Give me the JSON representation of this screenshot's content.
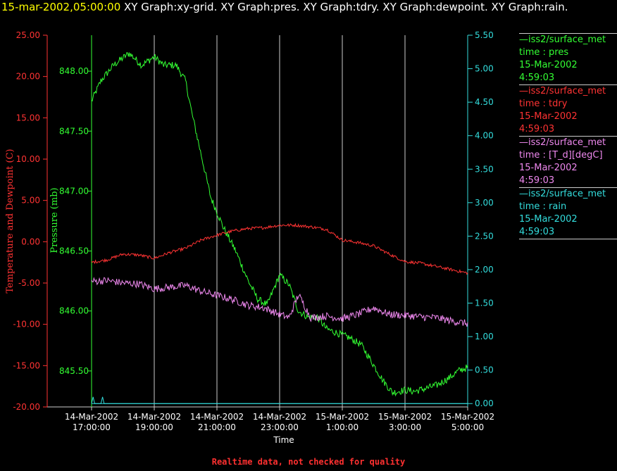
{
  "header": {
    "datetime": "15-mar-2002,05:00:00",
    "graphs": "XY Graph:xy-grid.  XY Graph:pres.  XY Graph:tdry.  XY Graph:dewpoint.  XY Graph:rain."
  },
  "footer": {
    "note": "Realtime data, not checked for quality"
  },
  "legend": [
    {
      "source": "—iss2/surface_met",
      "variable": "time : pres",
      "date": "15-Mar-2002",
      "time": "4:59:03",
      "color": "#33ff33"
    },
    {
      "source": "—iss2/surface_met",
      "variable": "time : tdry",
      "date": "15-Mar-2002",
      "time": "4:59:03",
      "color": "#ff3333"
    },
    {
      "source": "—iss2/surface_met",
      "variable": "time : [T_d][degC]",
      "date": "15-Mar-2002",
      "time": "4:59:03",
      "color": "#ee88ee"
    },
    {
      "source": "—iss2/surface_met",
      "variable": "time : rain",
      "date": "15-Mar-2002",
      "time": "4:59:03",
      "color": "#33dddd"
    }
  ],
  "chart_data": {
    "type": "line",
    "xlabel": "Time",
    "x_ticks": [
      [
        "14-Mar-2002",
        "17:00:00"
      ],
      [
        "14-Mar-2002",
        "19:00:00"
      ],
      [
        "14-Mar-2002",
        "21:00:00"
      ],
      [
        "14-Mar-2002",
        "23:00:00"
      ],
      [
        "15-Mar-2002",
        "1:00:00"
      ],
      [
        "15-Mar-2002",
        "3:00:00"
      ],
      [
        "15-Mar-2002",
        "5:00:00"
      ]
    ],
    "x_range_hours": [
      0,
      12
    ],
    "grid": "vertical",
    "axes": {
      "left_temp": {
        "label": "Temperature and Dewpoint (C)",
        "range": [
          -20,
          25
        ],
        "ticks": [
          "-20.00",
          "-15.00",
          "-10.00",
          "-5.00",
          "0.00",
          "5.00",
          "10.00",
          "15.00",
          "20.00",
          "25.00"
        ],
        "color": "#ff3333"
      },
      "left_pres": {
        "label": "Pressure (mb)",
        "range": [
          845.2,
          848.3
        ],
        "ticks": [
          "845.50",
          "846.00",
          "846.50",
          "847.00",
          "847.50",
          "848.00"
        ],
        "color": "#33ff33"
      },
      "right_rain": {
        "label": "",
        "range": [
          -0.05,
          5.5
        ],
        "ticks": [
          "0.00",
          "0.50",
          "1.00",
          "1.50",
          "2.00",
          "2.50",
          "3.00",
          "3.50",
          "4.00",
          "4.50",
          "5.00",
          "5.50"
        ],
        "color": "#33dddd"
      }
    },
    "series": [
      {
        "name": "pres",
        "axis": "left_pres",
        "color": "#33ff33",
        "x": [
          0,
          0.3,
          0.7,
          1.2,
          1.6,
          2.0,
          2.3,
          2.7,
          3.0,
          3.2,
          3.5,
          3.8,
          4.2,
          4.6,
          5.0,
          5.3,
          5.6,
          6.0,
          6.3,
          6.6,
          6.9,
          7.2,
          7.5,
          7.8,
          8.2,
          8.6,
          9.0,
          9.3,
          9.6,
          10.0,
          10.3,
          10.6,
          11.0,
          11.4,
          11.7,
          12.0
        ],
        "y": [
          847.75,
          847.92,
          848.05,
          848.15,
          848.05,
          848.12,
          848.05,
          848.05,
          847.92,
          847.65,
          847.3,
          846.95,
          846.7,
          846.5,
          846.25,
          846.1,
          846.05,
          846.3,
          846.22,
          846.0,
          845.95,
          845.95,
          845.85,
          845.82,
          845.78,
          845.72,
          845.55,
          845.42,
          845.32,
          845.34,
          845.33,
          845.35,
          845.38,
          845.44,
          845.5,
          845.53
        ]
      },
      {
        "name": "tdry",
        "axis": "left_temp",
        "color": "#ff3333",
        "x": [
          0,
          0.5,
          1.0,
          1.5,
          2.0,
          2.5,
          3.0,
          3.5,
          4.0,
          4.5,
          5.0,
          5.5,
          6.0,
          6.5,
          7.0,
          7.5,
          8.0,
          8.5,
          9.0,
          9.5,
          10.0,
          10.5,
          11.0,
          11.5,
          12.0
        ],
        "y": [
          -2.5,
          -2.2,
          -1.5,
          -1.6,
          -2.0,
          -1.3,
          -0.8,
          0.2,
          0.8,
          1.3,
          1.6,
          1.7,
          2.0,
          2.0,
          1.8,
          1.5,
          0.2,
          -0.1,
          -0.5,
          -1.5,
          -2.4,
          -2.6,
          -3.0,
          -3.4,
          -3.8
        ]
      },
      {
        "name": "dewpoint",
        "axis": "left_temp",
        "color": "#ee88ee",
        "x": [
          0,
          0.5,
          1.0,
          1.5,
          2.0,
          2.5,
          3.0,
          3.5,
          4.0,
          4.5,
          5.0,
          5.5,
          6.0,
          6.3,
          6.6,
          7.0,
          7.5,
          8.0,
          8.5,
          9.0,
          9.5,
          10.0,
          10.5,
          11.0,
          11.5,
          12.0
        ],
        "y": [
          -4.8,
          -4.7,
          -5.0,
          -5.1,
          -5.7,
          -5.5,
          -5.3,
          -6.0,
          -6.5,
          -7.0,
          -7.7,
          -8.0,
          -8.8,
          -9.2,
          -6.4,
          -9.2,
          -9.0,
          -9.3,
          -8.8,
          -8.0,
          -8.8,
          -8.9,
          -9.1,
          -9.2,
          -9.6,
          -9.9
        ]
      },
      {
        "name": "rain",
        "axis": "right_rain",
        "color": "#33dddd",
        "x": [
          0,
          0.05,
          0.1,
          0.15,
          0.3,
          0.35,
          0.4,
          0.5,
          12.0
        ],
        "y": [
          0,
          0.1,
          0,
          0,
          0,
          0.1,
          0,
          0,
          0
        ]
      }
    ]
  }
}
